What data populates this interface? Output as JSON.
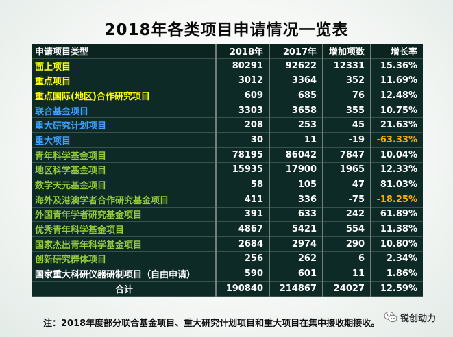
{
  "title": "2018年各类项目申请情况一览表",
  "table": {
    "headers": [
      "申请项目类型",
      "2018年",
      "2017年",
      "增加项数",
      "增长率"
    ],
    "rows": [
      {
        "type": "面上项目",
        "y2018": "80291",
        "y2017": "92622",
        "inc": "12331",
        "rate": "15.36%",
        "type_color": "yellow"
      },
      {
        "type": "重点项目",
        "y2018": "3012",
        "y2017": "3364",
        "inc": "352",
        "rate": "11.69%",
        "type_color": "yellow"
      },
      {
        "type": "重点国际(地区)合作研究项目",
        "y2018": "609",
        "y2017": "685",
        "inc": "76",
        "rate": "12.48%",
        "type_color": "yellow"
      },
      {
        "type": "联合基金项目",
        "y2018": "3303",
        "y2017": "3658",
        "inc": "355",
        "rate": "10.75%",
        "type_color": "blue"
      },
      {
        "type": "重大研究计划项目",
        "y2018": "208",
        "y2017": "253",
        "inc": "45",
        "rate": "21.63%",
        "type_color": "blue"
      },
      {
        "type": "重大项目",
        "y2018": "30",
        "y2017": "11",
        "inc": "-19",
        "rate": "-63.33%",
        "type_color": "blue",
        "rate_color": "orange"
      },
      {
        "type": "青年科学基金项目",
        "y2018": "78195",
        "y2017": "86042",
        "inc": "7847",
        "rate": "10.04%",
        "type_color": "green"
      },
      {
        "type": "地区科学基金项目",
        "y2018": "15935",
        "y2017": "17900",
        "inc": "1965",
        "rate": "12.33%",
        "type_color": "green"
      },
      {
        "type": "数学天元基金项目",
        "y2018": "58",
        "y2017": "105",
        "inc": "47",
        "rate": "81.03%",
        "type_color": "green"
      },
      {
        "type": "海外及港澳学者合作研究基金项目",
        "y2018": "411",
        "y2017": "336",
        "inc": "-75",
        "rate": "-18.25%",
        "type_color": "green",
        "rate_color": "orange"
      },
      {
        "type": "外国青年学者研究基金项目",
        "y2018": "391",
        "y2017": "633",
        "inc": "242",
        "rate": "61.89%",
        "type_color": "green"
      },
      {
        "type": "优秀青年科学基金项目",
        "y2018": "4867",
        "y2017": "5421",
        "inc": "554",
        "rate": "11.38%",
        "type_color": "green"
      },
      {
        "type": "国家杰出青年科学基金项目",
        "y2018": "2684",
        "y2017": "2974",
        "inc": "290",
        "rate": "10.80%",
        "type_color": "green"
      },
      {
        "type": "创新研究群体项目",
        "y2018": "256",
        "y2017": "262",
        "inc": "6",
        "rate": "2.34%",
        "type_color": "green"
      },
      {
        "type": "国家重大科研仪器研制项目（自由申请）",
        "y2018": "590",
        "y2017": "601",
        "inc": "11",
        "rate": "1.86%",
        "type_color": "white"
      }
    ],
    "total": {
      "type": "合计",
      "y2018": "190840",
      "y2017": "214867",
      "inc": "24027",
      "rate": "12.59%"
    }
  },
  "footnote": "注：2018年度部分联合基金项目、重大研究计划项目和重大项目在集中接收期接收。",
  "watermark": "锐创动力",
  "colors": {
    "yellow": "#ffff00",
    "blue": "#3fa0ff",
    "green": "#93c93b",
    "white": "#ffffff",
    "orange": "#ffae00",
    "table_bg": "#0e2a26"
  }
}
